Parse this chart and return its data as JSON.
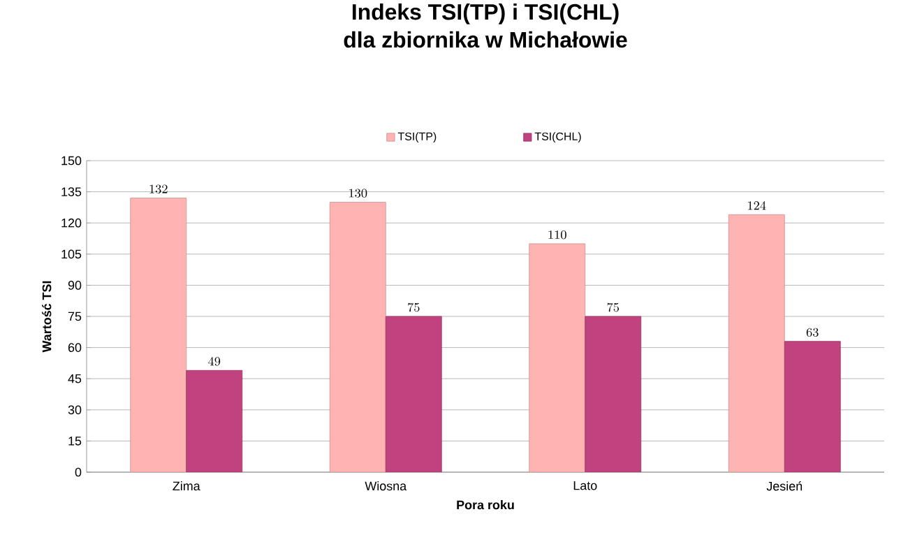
{
  "chart_data": {
    "type": "bar",
    "title": "Indeks TSI(TP) i TSI(CHL)\ndla zbiornika w Michałowie",
    "xlabel": "Pora roku",
    "ylabel": "Wartość TSI",
    "categories": [
      "Zima",
      "Wiosna",
      "Lato",
      "Jesień"
    ],
    "series": [
      {
        "name": "TSI(TP)",
        "color": "#ffb3b3",
        "values": [
          132,
          130,
          110,
          124
        ]
      },
      {
        "name": "TSI(CHL)",
        "color": "#c0427e",
        "values": [
          49,
          75,
          75,
          63
        ]
      }
    ],
    "ylim": [
      0,
      150
    ],
    "yticks": [
      0,
      15,
      30,
      45,
      60,
      75,
      90,
      105,
      120,
      135,
      150
    ],
    "grid": "y",
    "legend": "top",
    "data_labels": true
  }
}
